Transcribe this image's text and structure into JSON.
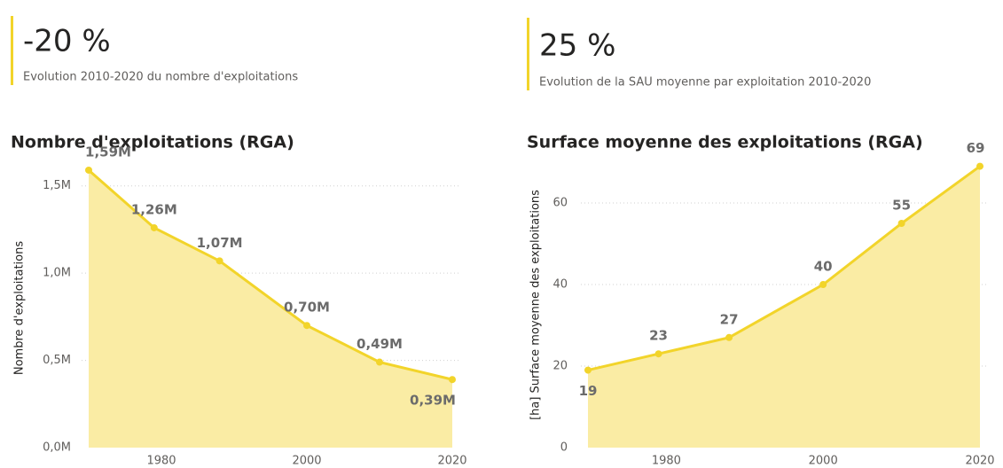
{
  "kpis": [
    {
      "value": "-20 %",
      "label": "Evolution 2010-2020 du nombre d'exploitations"
    },
    {
      "value": "25 %",
      "label": "Evolution de la SAU moyenne par exploitation 2010-2020"
    }
  ],
  "chart_data": [
    {
      "type": "area",
      "title": "Nombre d'exploitations (RGA)",
      "y_label": "Nombre d'exploitations",
      "x": [
        1970,
        1979,
        1988,
        2000,
        2010,
        2020
      ],
      "values": [
        1590000,
        1260000,
        1070000,
        700000,
        490000,
        390000
      ],
      "value_labels": [
        "1,59M",
        "1,26M",
        "1,07M",
        "0,70M",
        "0,49M",
        "0,39M"
      ],
      "xlim": [
        1970,
        2020
      ],
      "xticks": [
        1980,
        2000,
        2020
      ],
      "ylim": [
        0,
        1600000
      ],
      "yticks": [
        {
          "value": 0,
          "label": "0,0M"
        },
        {
          "value": 500000,
          "label": "0,5M"
        },
        {
          "value": 1000000,
          "label": "1,0M"
        },
        {
          "value": 1500000,
          "label": "1,5M"
        }
      ],
      "grid": true,
      "color": "#f2d42a",
      "fill": "#faeca4"
    },
    {
      "type": "area",
      "title": "Surface moyenne des exploitations (RGA)",
      "y_label": "[ha] Surface moyenne des exploitations",
      "x": [
        1970,
        1979,
        1988,
        2000,
        2010,
        2020
      ],
      "values": [
        19,
        23,
        27,
        40,
        55,
        69
      ],
      "xlim": [
        1970,
        2020
      ],
      "xticks": [
        1980,
        2000,
        2020
      ],
      "ylim": [
        0,
        70
      ],
      "yticks": [
        0,
        20,
        40,
        60
      ],
      "grid": true,
      "color": "#f2d42a",
      "fill": "#faeca4"
    }
  ]
}
